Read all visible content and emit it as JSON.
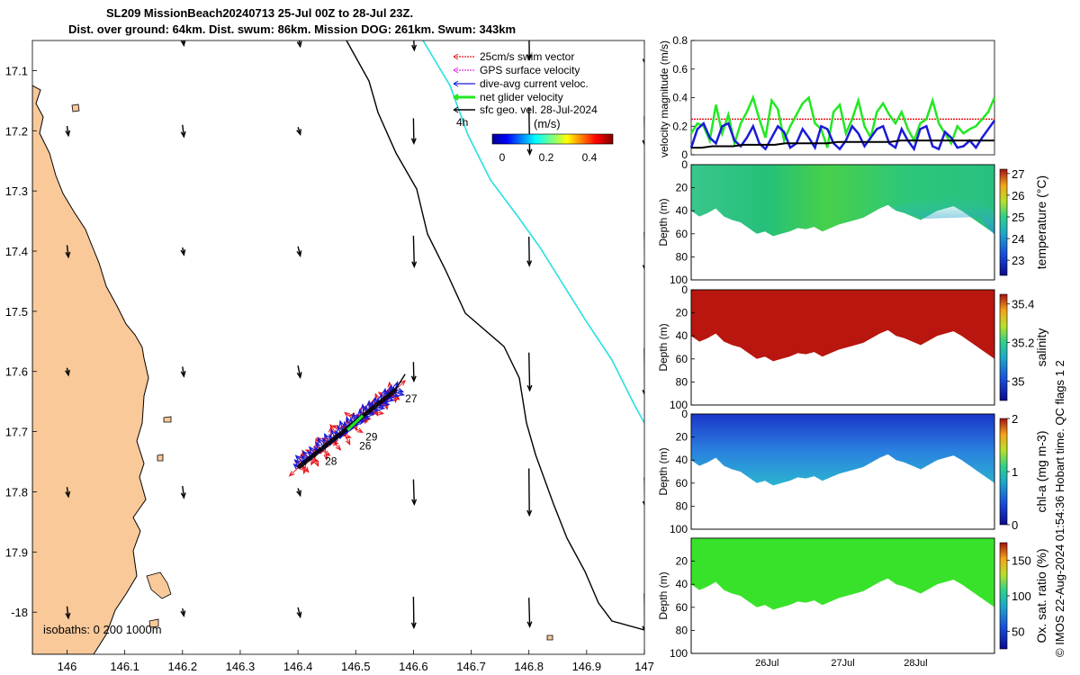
{
  "title": {
    "line1": "SL209 MissionBeach20240713 25-Jul 00Z to 28-Jul 23Z.",
    "line2": "Dist. over ground: 64km. Dist. swum: 86km. Mission DOG: 261km. Swum: 343km"
  },
  "credit": "© IMOS 22-Aug-2024 01:54:36 Hobart time. QC flags 1  2",
  "colors": {
    "land": "#f9c99a",
    "swim": "#e8141a",
    "gps": "#e630e6",
    "dive": "#1a1ad8",
    "net": "#22e822",
    "geo": "#000000",
    "shelf": "#27e0e0"
  },
  "chart_data": [
    {
      "id": "map",
      "type": "scatter",
      "title": "glider track map",
      "xlabel": "",
      "ylabel": "",
      "xlim": [
        145.94,
        147.0
      ],
      "ylim": [
        -18.07,
        -17.05
      ],
      "xticks": [
        "146",
        "146.1",
        "146.2",
        "146.3",
        "146.4",
        "146.5",
        "146.6",
        "146.7",
        "146.8",
        "146.9",
        "147"
      ],
      "yticks": [
        "17.1",
        "17.2",
        "17.3",
        "17.4",
        "17.5",
        "17.6",
        "17.7",
        "17.8",
        "17.9",
        "-18"
      ],
      "legend": [
        "25cm/s swim vector",
        "GPS surface velocity",
        "dive-avg current veloc.",
        "net glider velocity",
        "sfc geo. vel. 28-Jul-2024"
      ],
      "legend_extra": "4h",
      "colorbar": {
        "label": "(m/s)",
        "ticks": [
          "0",
          "0.2",
          "0.4"
        ],
        "range": [
          0,
          0.5
        ]
      },
      "isobaths_label": "isobaths: 0   200  1000m",
      "track": {
        "start": [
          146.4,
          -17.76
        ],
        "end": [
          146.57,
          -17.63
        ],
        "day_labels": [
          "27",
          "29",
          "26",
          "28"
        ]
      }
    },
    {
      "id": "velocity",
      "type": "line",
      "ylabel": "velocity magnitude (m/s)",
      "ylim": [
        0,
        0.8
      ],
      "yticks": [
        "0",
        "0.2",
        "0.4",
        "0.6",
        "0.8"
      ],
      "swim_reference": 0.25,
      "series": [
        {
          "name": "net glider velocity",
          "values": [
            0.15,
            0.22,
            0.2,
            0.1,
            0.35,
            0.15,
            0.28,
            0.08,
            0.22,
            0.3,
            0.4,
            0.25,
            0.12,
            0.38,
            0.32,
            0.1,
            0.2,
            0.28,
            0.36,
            0.4,
            0.22,
            0.18,
            0.05,
            0.3,
            0.35,
            0.15,
            0.25,
            0.38,
            0.2,
            0.12,
            0.3,
            0.36,
            0.28,
            0.22,
            0.3,
            0.18,
            0.1,
            0.22,
            0.25,
            0.38,
            0.22,
            0.15,
            0.08,
            0.2,
            0.15,
            0.18,
            0.2,
            0.25,
            0.3,
            0.4
          ]
        },
        {
          "name": "dive-avg current veloc.",
          "values": [
            0.05,
            0.18,
            0.22,
            0.12,
            0.08,
            0.2,
            0.22,
            0.1,
            0.06,
            0.12,
            0.2,
            0.08,
            0.04,
            0.12,
            0.2,
            0.16,
            0.05,
            0.08,
            0.18,
            0.12,
            0.05,
            0.2,
            0.18,
            0.08,
            0.04,
            0.1,
            0.2,
            0.15,
            0.06,
            0.12,
            0.18,
            0.2,
            0.08,
            0.05,
            0.18,
            0.1,
            0.04,
            0.18,
            0.2,
            0.06,
            0.04,
            0.16,
            0.12,
            0.05,
            0.06,
            0.1,
            0.05,
            0.12,
            0.18,
            0.24
          ]
        },
        {
          "name": "sfc geo. vel.",
          "values": [
            0.05,
            0.05,
            0.06,
            0.06,
            0.06,
            0.07,
            0.07,
            0.07,
            0.07,
            0.08,
            0.08,
            0.08,
            0.08,
            0.08,
            0.09,
            0.09,
            0.09,
            0.09,
            0.09,
            0.09,
            0.1,
            0.1,
            0.1,
            0.1,
            0.1,
            0.1,
            0.1,
            0.1,
            0.1,
            0.1
          ]
        }
      ]
    },
    {
      "id": "temperature",
      "type": "heatmap",
      "ylabel": "Depth (m)",
      "clabel": "temperature (°C)",
      "yticks": [
        "0",
        "20",
        "40",
        "60",
        "80",
        "100"
      ],
      "cticks": [
        "27",
        "26",
        "25",
        "24",
        "23"
      ],
      "crange": [
        22.3,
        27.2
      ]
    },
    {
      "id": "salinity",
      "type": "heatmap",
      "ylabel": "Depth (m)",
      "clabel": "salinity",
      "yticks": [
        "0",
        "20",
        "40",
        "60",
        "80",
        "100"
      ],
      "cticks": [
        "35.4",
        "35.2",
        "35"
      ],
      "crange": [
        34.9,
        35.45
      ]
    },
    {
      "id": "chla",
      "type": "heatmap",
      "ylabel": "Depth (m)",
      "clabel": "chl-a (mg m-3)",
      "yticks": [
        "0",
        "20",
        "40",
        "60",
        "80",
        "100"
      ],
      "cticks": [
        "2",
        "1",
        "0"
      ],
      "crange": [
        0,
        2
      ]
    },
    {
      "id": "oxygen",
      "type": "heatmap",
      "ylabel": "Depth (m)",
      "clabel": "Ox. sat. ratio (%)",
      "yticks": [
        "20",
        "40",
        "60",
        "80",
        "100"
      ],
      "cticks": [
        "150",
        "100",
        "50"
      ],
      "crange": [
        25,
        175
      ],
      "xticks": [
        "26Jul",
        "27Jul",
        "28Jul"
      ]
    }
  ]
}
